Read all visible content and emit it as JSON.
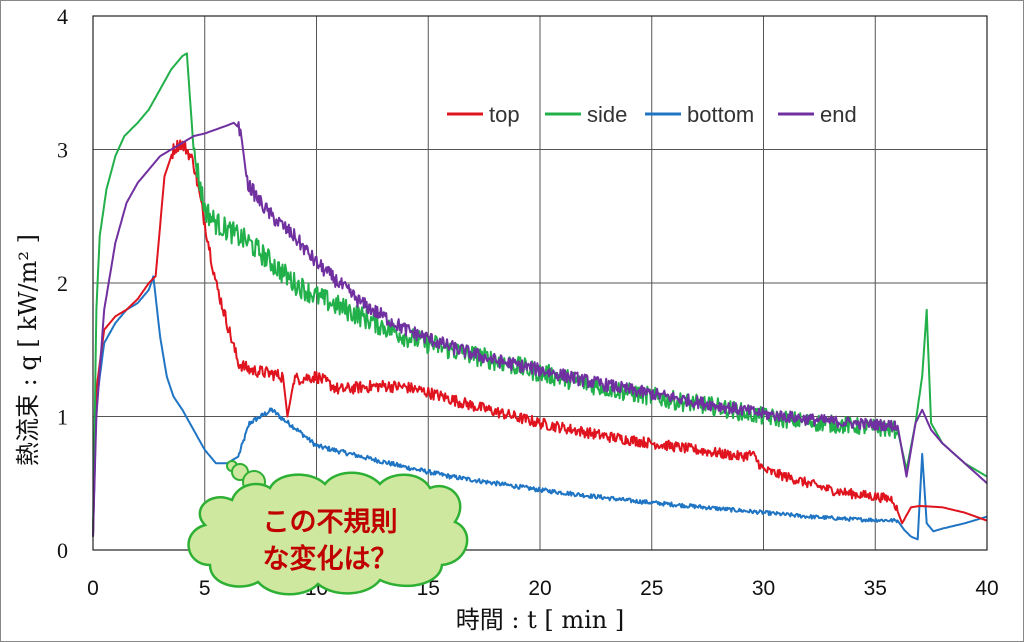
{
  "chart_data": {
    "type": "line",
    "xlabel": "時間 : t [ min ]",
    "ylabel": "熱流束 : q [ kW/m² ]",
    "xlim": [
      0,
      40
    ],
    "ylim": [
      0,
      4
    ],
    "x_ticks": [
      "0",
      "5",
      "10",
      "15",
      "20",
      "25",
      "30",
      "35",
      "40"
    ],
    "y_ticks": [
      "0",
      "1",
      "2",
      "3",
      "4"
    ],
    "grid": true,
    "legend_position": "top-right",
    "annotation": {
      "line1": "この不規則",
      "line2": "な変化は？",
      "points_to": [
        6.5,
        0.62
      ]
    },
    "series": [
      {
        "name": "top",
        "color": "#e0141e",
        "x": [
          0,
          0.15,
          0.5,
          1,
          1.5,
          2,
          2.5,
          2.8,
          3.2,
          3.6,
          3.9,
          4.2,
          4.5,
          5,
          5.5,
          6,
          6.5,
          7,
          8,
          8.5,
          8.7,
          9,
          10,
          11,
          12,
          13,
          14,
          15,
          17,
          20,
          23,
          25,
          27,
          29,
          29.5,
          30,
          31,
          32,
          33,
          34,
          35,
          35.8,
          36.2,
          36.6,
          37,
          38,
          39,
          40
        ],
        "y": [
          0.1,
          1.2,
          1.65,
          1.75,
          1.8,
          1.88,
          2.0,
          2.05,
          2.8,
          3.0,
          3.05,
          3.0,
          2.9,
          2.45,
          2.0,
          1.7,
          1.4,
          1.35,
          1.32,
          1.3,
          1.0,
          1.28,
          1.3,
          1.2,
          1.22,
          1.23,
          1.22,
          1.18,
          1.08,
          0.95,
          0.85,
          0.8,
          0.75,
          0.7,
          0.72,
          0.6,
          0.55,
          0.5,
          0.45,
          0.42,
          0.4,
          0.38,
          0.2,
          0.32,
          0.33,
          0.32,
          0.28,
          0.22
        ]
      },
      {
        "name": "side",
        "color": "#22b04a",
        "x": [
          0,
          0.15,
          0.3,
          0.6,
          1,
          1.4,
          2,
          2.5,
          3,
          3.5,
          4,
          4.2,
          4.5,
          5,
          5.5,
          6,
          7,
          8,
          9,
          10,
          12,
          14,
          16,
          18,
          20,
          22,
          24,
          26,
          28,
          30,
          32,
          34,
          36,
          36.4,
          36.8,
          37.1,
          37.3,
          37.5,
          38,
          39,
          40
        ],
        "y": [
          0.1,
          1.8,
          2.35,
          2.7,
          2.95,
          3.1,
          3.2,
          3.3,
          3.45,
          3.6,
          3.7,
          3.72,
          3.0,
          2.55,
          2.45,
          2.4,
          2.3,
          2.15,
          2.0,
          1.9,
          1.75,
          1.6,
          1.5,
          1.42,
          1.33,
          1.25,
          1.18,
          1.12,
          1.07,
          1.0,
          0.96,
          0.93,
          0.9,
          0.6,
          0.95,
          1.3,
          1.8,
          0.95,
          0.8,
          0.65,
          0.55
        ]
      },
      {
        "name": "bottom",
        "color": "#1f75c4",
        "x": [
          0,
          0.15,
          0.5,
          1,
          1.5,
          2,
          2.5,
          2.7,
          3,
          3.3,
          3.6,
          4,
          4.5,
          5,
          5.5,
          6,
          6.5,
          7,
          7.5,
          8,
          8.5,
          9,
          10,
          12,
          14,
          16,
          18,
          20,
          22,
          24,
          26,
          28,
          30,
          32,
          34,
          36,
          36.3,
          36.6,
          36.9,
          37.1,
          37.3,
          37.6,
          38,
          39,
          40
        ],
        "y": [
          0.1,
          1.1,
          1.55,
          1.7,
          1.8,
          1.85,
          1.95,
          2.05,
          1.6,
          1.3,
          1.15,
          1.05,
          0.9,
          0.75,
          0.65,
          0.65,
          0.7,
          0.95,
          1.0,
          1.05,
          0.98,
          0.92,
          0.78,
          0.7,
          0.62,
          0.55,
          0.5,
          0.45,
          0.41,
          0.37,
          0.34,
          0.31,
          0.28,
          0.25,
          0.23,
          0.22,
          0.15,
          0.1,
          0.08,
          0.72,
          0.2,
          0.14,
          0.16,
          0.2,
          0.25
        ]
      },
      {
        "name": "end",
        "color": "#7030a0",
        "x": [
          0,
          0.15,
          0.5,
          1,
          1.5,
          2,
          2.5,
          3,
          3.5,
          4,
          4.5,
          5,
          5.5,
          6,
          6.3,
          6.6,
          6.9,
          7.5,
          8,
          9,
          10,
          12,
          14,
          16,
          18,
          20,
          22,
          24,
          26,
          28,
          30,
          32,
          34,
          36,
          36.4,
          36.8,
          37.1,
          37.5,
          38,
          39,
          40
        ],
        "y": [
          0.1,
          1.0,
          1.8,
          2.3,
          2.6,
          2.75,
          2.85,
          2.95,
          3.0,
          3.05,
          3.1,
          3.12,
          3.15,
          3.18,
          3.2,
          3.15,
          2.75,
          2.6,
          2.5,
          2.35,
          2.15,
          1.85,
          1.65,
          1.52,
          1.42,
          1.35,
          1.27,
          1.2,
          1.14,
          1.08,
          1.02,
          0.98,
          0.95,
          0.93,
          0.55,
          0.95,
          1.05,
          0.9,
          0.8,
          0.65,
          0.5
        ]
      }
    ]
  }
}
